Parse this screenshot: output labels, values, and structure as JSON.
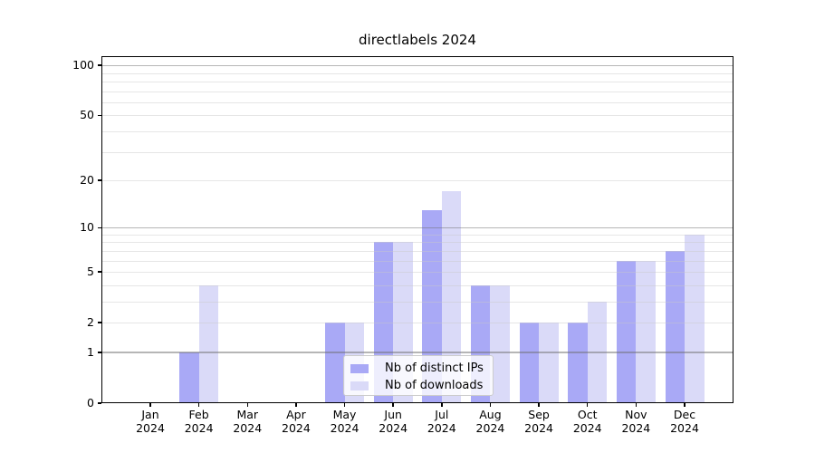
{
  "title": "directlabels 2024",
  "chart_data": {
    "type": "bar",
    "title": "directlabels 2024",
    "categories": [
      "Jan",
      "Feb",
      "Mar",
      "Apr",
      "May",
      "Jun",
      "Jul",
      "Aug",
      "Sep",
      "Oct",
      "Nov",
      "Dec"
    ],
    "x_year_label": "2024",
    "series": [
      {
        "name": "Nb of distinct IPs",
        "color": "#a9a9f6",
        "values": [
          0,
          1,
          0,
          0,
          2,
          8,
          13,
          4,
          2,
          2,
          6,
          7
        ]
      },
      {
        "name": "Nb of downloads",
        "color": "#dadaf8",
        "values": [
          0,
          4,
          0,
          0,
          2,
          8,
          17,
          4,
          2,
          3,
          6,
          9
        ]
      }
    ],
    "y_axis": {
      "scale": "log10(value+1)",
      "tick_labels": [
        "100",
        "50",
        "20",
        "10",
        "5",
        "2",
        "1",
        "0"
      ],
      "tick_values": [
        100,
        50,
        20,
        10,
        5,
        2,
        1,
        0
      ],
      "minor_gridlines": [
        2,
        3,
        4,
        5,
        6,
        7,
        8,
        9,
        20,
        30,
        40,
        50,
        60,
        70,
        80,
        90
      ],
      "major_gridlines": [
        1,
        10,
        100
      ],
      "ylim": [
        0,
        113
      ]
    },
    "grid": true,
    "legend_position": "lower center"
  },
  "colors": {
    "bar_distinct_ips": "#a9a9f6",
    "bar_downloads": "#dadaf8",
    "axis": "#000000",
    "minor_grid": "rgba(200,200,200,0.45)",
    "major_grid": "rgba(110,110,110,0.5)",
    "legend_border": "#cccccc",
    "legend_bg": "rgba(255,255,255,0.8)"
  }
}
